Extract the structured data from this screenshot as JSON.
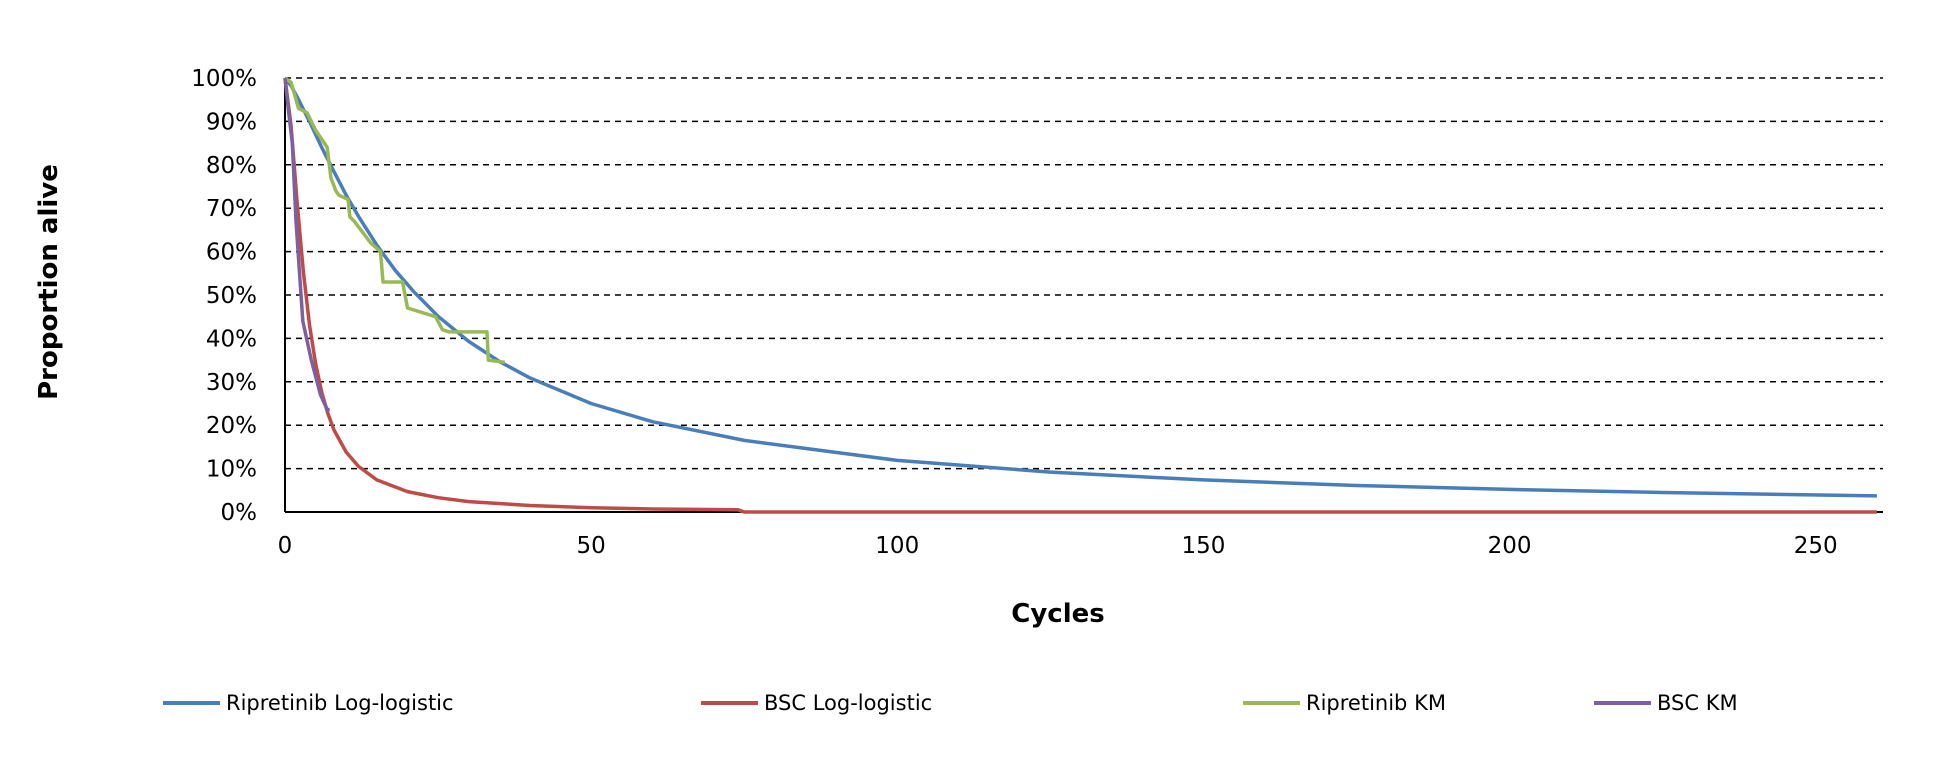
{
  "chart_data": {
    "type": "line",
    "title": "",
    "xlabel": "Cycles",
    "ylabel": "Proportion alive",
    "xlim": [
      0,
      261
    ],
    "ylim": [
      0,
      1
    ],
    "x_ticks": [
      0,
      50,
      100,
      150,
      200,
      250
    ],
    "x_tick_labels": [
      "0",
      "50",
      "100",
      "150",
      "200",
      "250"
    ],
    "y_ticks": [
      0,
      0.1,
      0.2,
      0.3,
      0.4,
      0.5,
      0.6,
      0.7,
      0.8,
      0.9,
      1.0
    ],
    "y_tick_labels": [
      "0%",
      "10%",
      "20%",
      "30%",
      "40%",
      "50%",
      "60%",
      "70%",
      "80%",
      "90%",
      "100%"
    ],
    "grid": {
      "horizontal": true,
      "style": "dashed",
      "vertical": false
    },
    "legend_position": "bottom",
    "series": [
      {
        "name": "Ripretinib Log-logistic",
        "color": "#4a7ebb",
        "points": [
          [
            0,
            1
          ],
          [
            1,
            0.982
          ],
          [
            2,
            0.956
          ],
          [
            4,
            0.9
          ],
          [
            6,
            0.84
          ],
          [
            8,
            0.784
          ],
          [
            10,
            0.73
          ],
          [
            12,
            0.681
          ],
          [
            15,
            0.615
          ],
          [
            18,
            0.557
          ],
          [
            21,
            0.508
          ],
          [
            25,
            0.451
          ],
          [
            30,
            0.393
          ],
          [
            35,
            0.347
          ],
          [
            40,
            0.309
          ],
          [
            50,
            0.25
          ],
          [
            60,
            0.208
          ],
          [
            75,
            0.165
          ],
          [
            100,
            0.119
          ],
          [
            125,
            0.092
          ],
          [
            150,
            0.074
          ],
          [
            175,
            0.061
          ],
          [
            200,
            0.052
          ],
          [
            225,
            0.045
          ],
          [
            260,
            0.037
          ]
        ]
      },
      {
        "name": "BSC Log-logistic",
        "color": "#be4b48",
        "points": [
          [
            0,
            1
          ],
          [
            1,
            0.889
          ],
          [
            2,
            0.711
          ],
          [
            3,
            0.553
          ],
          [
            4,
            0.431
          ],
          [
            5,
            0.342
          ],
          [
            6,
            0.276
          ],
          [
            7,
            0.227
          ],
          [
            8,
            0.189
          ],
          [
            10,
            0.138
          ],
          [
            12,
            0.105
          ],
          [
            15,
            0.074
          ],
          [
            20,
            0.047
          ],
          [
            25,
            0.033
          ],
          [
            30,
            0.024
          ],
          [
            40,
            0.015
          ],
          [
            50,
            0.01
          ],
          [
            60,
            0.007
          ],
          [
            74,
            0.005
          ],
          [
            75,
            0.0
          ],
          [
            260,
            0.0
          ]
        ]
      },
      {
        "name": "Ripretinib KM",
        "color": "#98b954",
        "points": [
          [
            0,
            1
          ],
          [
            1,
            0.99
          ],
          [
            2.2,
            0.93
          ],
          [
            3.6,
            0.92
          ],
          [
            5,
            0.88
          ],
          [
            6.9,
            0.84
          ],
          [
            7.5,
            0.77
          ],
          [
            8.3,
            0.74
          ],
          [
            8.8,
            0.73
          ],
          [
            10.3,
            0.72
          ],
          [
            10.6,
            0.68
          ],
          [
            11.3,
            0.67
          ],
          [
            14,
            0.62
          ],
          [
            15.6,
            0.6
          ],
          [
            16,
            0.53
          ],
          [
            19.2,
            0.53
          ],
          [
            20,
            0.47
          ],
          [
            24.6,
            0.45
          ],
          [
            25.7,
            0.42
          ],
          [
            26.8,
            0.415
          ],
          [
            33,
            0.415
          ],
          [
            33.2,
            0.35
          ],
          [
            35.9,
            0.345
          ]
        ]
      },
      {
        "name": "BSC KM",
        "color": "#7d60a0",
        "points": [
          [
            0,
            1
          ],
          [
            0.6,
            0.92
          ],
          [
            1.2,
            0.85
          ],
          [
            1.8,
            0.67
          ],
          [
            2.9,
            0.44
          ],
          [
            4.3,
            0.35
          ],
          [
            5.8,
            0.27
          ],
          [
            6.9,
            0.236
          ],
          [
            7.3,
            0.236
          ]
        ]
      }
    ]
  }
}
